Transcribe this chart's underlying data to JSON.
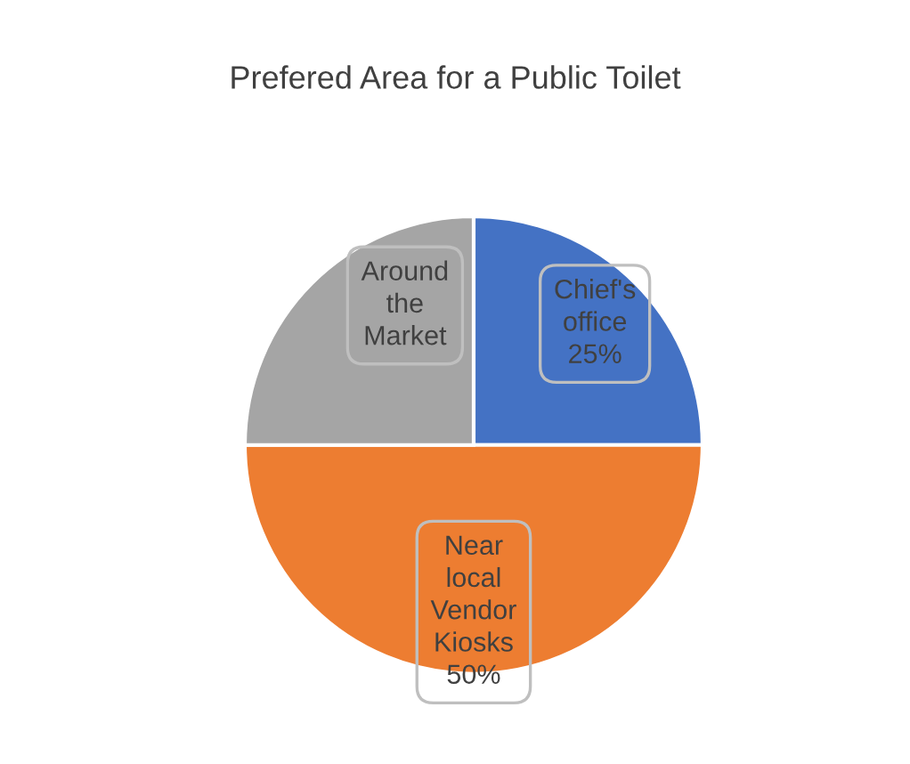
{
  "chart_data": {
    "type": "pie",
    "title": "Prefered Area for a Public Toilet",
    "categories": [
      "Chief's\noffice",
      "Near\nlocal\nVendor\nKiosks",
      "Around\nthe\nMarket"
    ],
    "values": [
      25,
      50,
      25
    ],
    "value_labels": [
      "25%",
      "50%",
      null
    ],
    "colors": [
      "#4472c4",
      "#ed7d31",
      "#a5a5a5"
    ]
  }
}
